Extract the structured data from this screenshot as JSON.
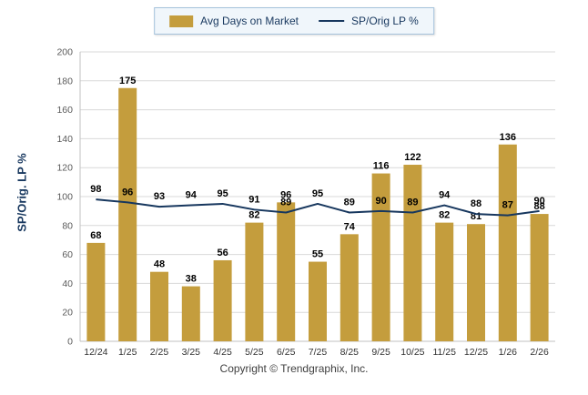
{
  "legend": {
    "bar_label": "Avg Days on Market",
    "line_label": "SP/Orig LP %"
  },
  "ylabel": "SP/Orig. LP %",
  "footer": "Copyright © Trendgraphix, Inc.",
  "colors": {
    "bar": "#c49d3d",
    "line": "#17375e",
    "grid": "#d9d9d9",
    "axis_line": "#c0c0c0",
    "legend_border": "#a6c3dc",
    "ylabel_color": "#17375e"
  },
  "chart_data": {
    "type": "bar",
    "subtype": "bar+line combo",
    "title": "",
    "xlabel": "",
    "ylabel": "SP/Orig. LP %",
    "ylim": [
      0,
      200
    ],
    "ytick_step": 20,
    "grid": true,
    "legend_position": "top",
    "categories": [
      "12/24",
      "1/25",
      "2/25",
      "3/25",
      "4/25",
      "5/25",
      "6/25",
      "7/25",
      "8/25",
      "9/25",
      "10/25",
      "11/25",
      "12/25",
      "1/26",
      "2/26"
    ],
    "series": [
      {
        "name": "Avg Days on Market",
        "type": "bar",
        "color": "#c49d3d",
        "values": [
          68,
          175,
          48,
          38,
          56,
          82,
          96,
          55,
          74,
          116,
          122,
          82,
          81,
          136,
          88
        ]
      },
      {
        "name": "SP/Orig LP %",
        "type": "line",
        "color": "#17375e",
        "values": [
          98,
          96,
          93,
          94,
          95,
          91,
          89,
          95,
          89,
          90,
          89,
          94,
          88,
          87,
          90
        ]
      }
    ]
  }
}
